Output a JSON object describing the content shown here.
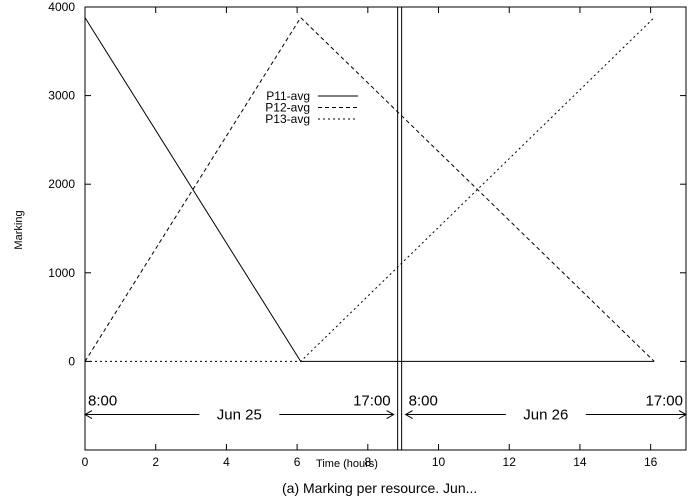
{
  "chart_data": {
    "type": "line",
    "xlabel": "Time (hours)",
    "ylabel": "Marking",
    "xlim": [
      0,
      17
    ],
    "ylim": [
      -1000,
      4000
    ],
    "x_ticks": [
      0,
      2,
      4,
      6,
      8,
      10,
      12,
      14,
      16
    ],
    "y_ticks": [
      0,
      1000,
      2000,
      3000,
      4000
    ],
    "x_tick_labels": [
      "0",
      "2",
      "4",
      "6",
      "8",
      "10",
      "12",
      "14",
      "16"
    ],
    "y_tick_labels": [
      "0",
      "1000",
      "2000",
      "3000",
      "4000"
    ],
    "grid": false,
    "legend_position": "top-center",
    "series": [
      {
        "name": "P11-avg",
        "style": "solid",
        "points": [
          [
            0,
            3880
          ],
          [
            6.1,
            0
          ],
          [
            16.1,
            0
          ]
        ]
      },
      {
        "name": "P12-avg",
        "style": "dashed",
        "points": [
          [
            0,
            0
          ],
          [
            6.1,
            3880
          ],
          [
            16.1,
            0
          ]
        ]
      },
      {
        "name": "P13-avg",
        "style": "dotted",
        "points": [
          [
            0,
            0
          ],
          [
            6.1,
            0
          ],
          [
            16.1,
            3880
          ]
        ]
      }
    ],
    "day_separator_x": 8.9,
    "annotations": [
      {
        "start_label": "8:00",
        "end_label": "17:00",
        "day_label": "Jun 25",
        "x_from": 0,
        "x_to": 8.9
      },
      {
        "start_label": "8:00",
        "end_label": "17:00",
        "day_label": "Jun 26",
        "x_from": 8.9,
        "x_to": 17
      }
    ],
    "caption": "(a) Marking per resource. Jun..."
  }
}
